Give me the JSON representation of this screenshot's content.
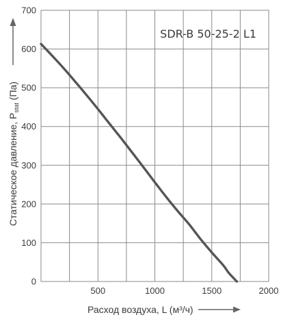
{
  "chart_data": {
    "type": "line",
    "model_label": "SDR-B 50-25-2 L1",
    "xlabel": "Расход воздуха, L (м³/ч)",
    "ylabel": {
      "prefix": "Статическое давление, P",
      "subscript": "stat",
      "suffix": " (Па)"
    },
    "xlim": [
      0,
      2000
    ],
    "ylim": [
      0,
      700
    ],
    "x_ticks": [
      500,
      1000,
      1500,
      2000
    ],
    "x_tick_labels": [
      "500",
      "1000",
      "1500",
      "2000"
    ],
    "y_ticks": [
      0,
      100,
      200,
      300,
      400,
      500,
      600,
      700
    ],
    "y_tick_labels": [
      "0",
      "100",
      "200",
      "300",
      "400",
      "500",
      "600",
      "700"
    ],
    "x_grid_step": 250,
    "y_grid_step": 100,
    "grid": true,
    "series": [
      {
        "x": [
          0,
          100,
          200,
          300,
          400,
          500,
          600,
          700,
          800,
          900,
          1000,
          1100,
          1200,
          1300,
          1400,
          1500,
          1600,
          1650,
          1700,
          1720
        ],
        "y": [
          613,
          582,
          550,
          516,
          481,
          445,
          408,
          371,
          333,
          295,
          256,
          218,
          182,
          148,
          110,
          75,
          42,
          22,
          6,
          0
        ]
      }
    ]
  }
}
